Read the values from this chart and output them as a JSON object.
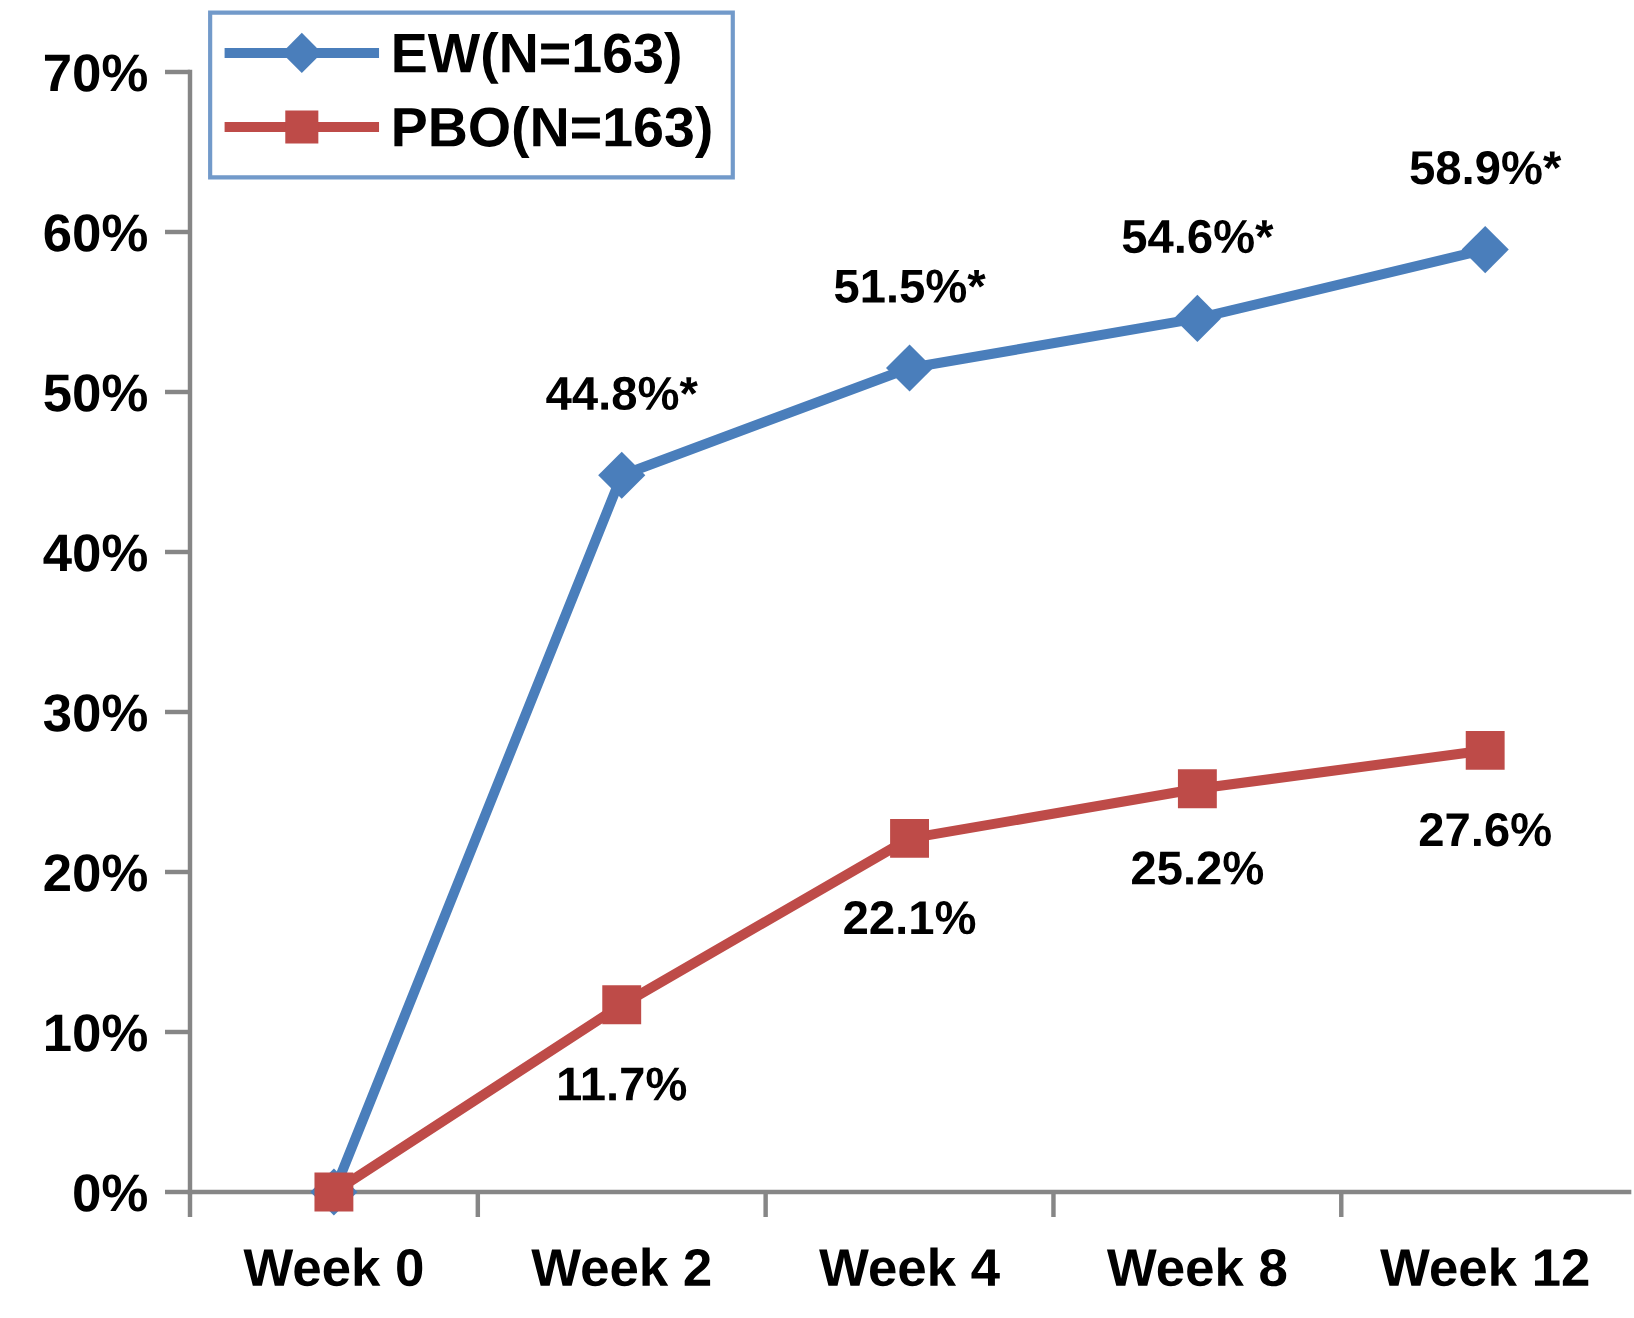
{
  "chart_data": {
    "type": "line",
    "categories": [
      "Week 0",
      "Week 2",
      "Week 4",
      "Week 8",
      "Week 12"
    ],
    "series": [
      {
        "name": "EW(N=163)",
        "color": "#4a7ebb",
        "marker": "diamond",
        "values": [
          0,
          44.8,
          51.5,
          54.6,
          58.9
        ],
        "value_labels": [
          null,
          "44.8%*",
          "51.5%*",
          "54.6%*",
          "58.9%*"
        ]
      },
      {
        "name": "PBO(N=163)",
        "color": "#be4b48",
        "marker": "square",
        "values": [
          0,
          11.7,
          22.1,
          25.2,
          27.6
        ],
        "value_labels": [
          null,
          "11.7%",
          "22.1%",
          "25.2%",
          "27.6%"
        ]
      }
    ],
    "ylim": [
      0,
      70
    ],
    "yticks": [
      {
        "value": 0,
        "label": "0%"
      },
      {
        "value": 10,
        "label": "10%"
      },
      {
        "value": 20,
        "label": "20%"
      },
      {
        "value": 30,
        "label": "30%"
      },
      {
        "value": 40,
        "label": "40%"
      },
      {
        "value": 50,
        "label": "50%"
      },
      {
        "value": 60,
        "label": "60%"
      },
      {
        "value": 70,
        "label": "70%"
      }
    ],
    "legend": "top left",
    "line_style": "solid"
  }
}
